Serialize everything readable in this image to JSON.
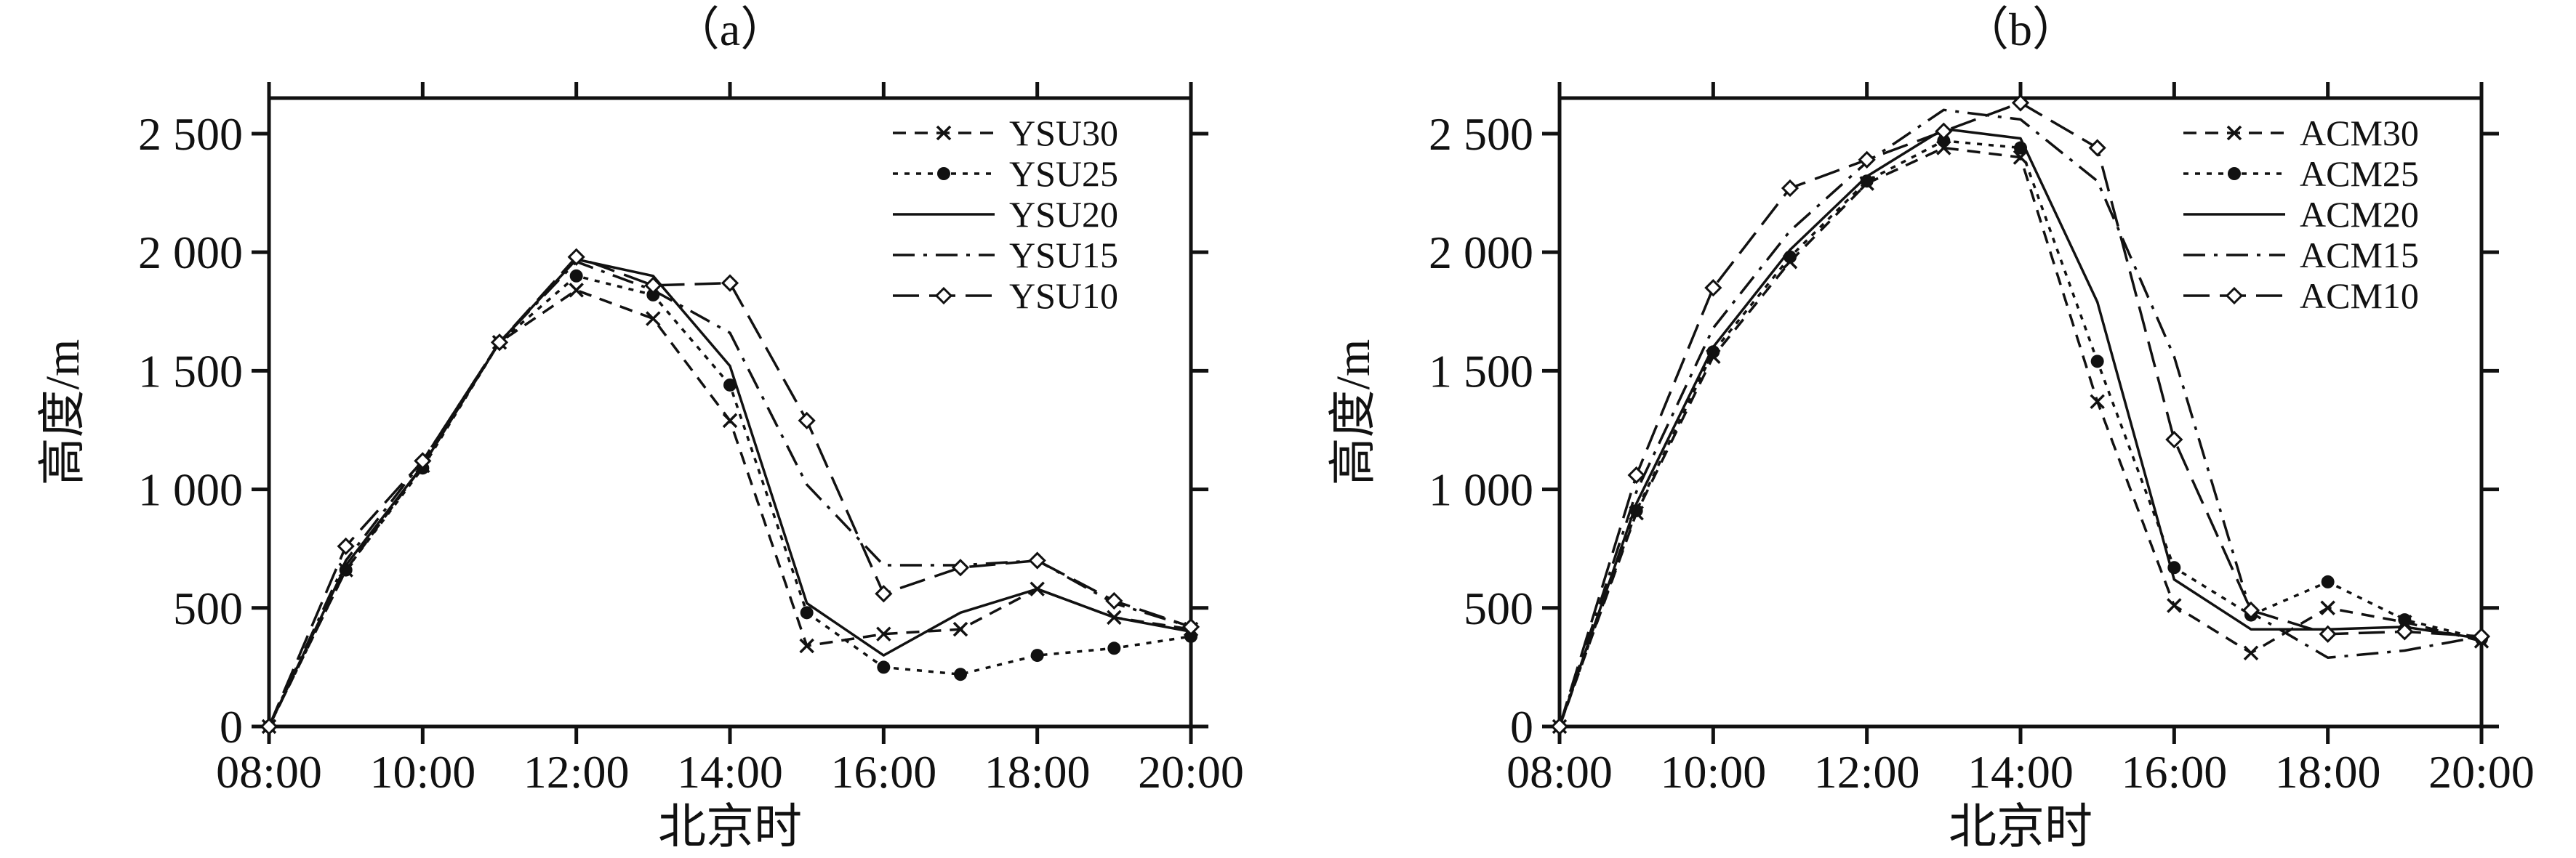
{
  "chart_data": [
    {
      "type": "line",
      "panel_label": "（a）",
      "xlabel": "北京时",
      "ylabel": "高度/m",
      "x_ticks": [
        "08:00",
        "10:00",
        "12:00",
        "14:00",
        "16:00",
        "18:00",
        "20:00"
      ],
      "x_tick_hours": [
        8,
        10,
        12,
        14,
        16,
        18,
        20
      ],
      "y_ticks": [
        0,
        500,
        1000,
        1500,
        2000,
        2500
      ],
      "y_tick_labels": [
        "0",
        "500",
        "1 000",
        "1 500",
        "2 000",
        "2 500"
      ],
      "xlim": [
        8,
        20
      ],
      "ylim": [
        0,
        2650
      ],
      "legend_position": "top-right",
      "x": [
        8,
        9,
        10,
        11,
        12,
        13,
        14,
        15,
        16,
        17,
        18,
        19,
        20
      ],
      "series": [
        {
          "name": "YSU30",
          "style": "dash-x",
          "values": [
            0,
            660,
            1100,
            1620,
            1840,
            1720,
            1290,
            340,
            390,
            410,
            580,
            460,
            410
          ]
        },
        {
          "name": "YSU25",
          "style": "dot-circle",
          "values": [
            0,
            660,
            1090,
            1620,
            1900,
            1820,
            1440,
            480,
            250,
            220,
            300,
            330,
            380
          ]
        },
        {
          "name": "YSU20",
          "style": "solid",
          "values": [
            0,
            680,
            1100,
            1620,
            1970,
            1900,
            1520,
            520,
            300,
            480,
            580,
            460,
            400
          ]
        },
        {
          "name": "YSU15",
          "style": "dash-dot",
          "values": [
            0,
            700,
            1120,
            1620,
            1960,
            1840,
            1660,
            1020,
            680,
            680,
            700,
            520,
            420
          ]
        },
        {
          "name": "YSU10",
          "style": "long-dash-diamond",
          "values": [
            0,
            760,
            1120,
            1620,
            1980,
            1860,
            1870,
            1290,
            560,
            670,
            700,
            530,
            420
          ]
        }
      ]
    },
    {
      "type": "line",
      "panel_label": "（b）",
      "xlabel": "北京时",
      "ylabel": "高度/m",
      "x_ticks": [
        "08:00",
        "10:00",
        "12:00",
        "14:00",
        "16:00",
        "18:00",
        "20:00"
      ],
      "x_tick_hours": [
        8,
        10,
        12,
        14,
        16,
        18,
        20
      ],
      "y_ticks": [
        0,
        500,
        1000,
        1500,
        2000,
        2500
      ],
      "y_tick_labels": [
        "0",
        "500",
        "1 000",
        "1 500",
        "2 000",
        "2 500"
      ],
      "xlim": [
        8,
        20
      ],
      "ylim": [
        0,
        2650
      ],
      "legend_position": "top-right",
      "x": [
        8,
        9,
        10,
        11,
        12,
        13,
        14,
        15,
        16,
        17,
        18,
        19,
        20
      ],
      "series": [
        {
          "name": "ACM30",
          "style": "dash-x",
          "values": [
            0,
            900,
            1560,
            1960,
            2290,
            2440,
            2400,
            1370,
            510,
            310,
            500,
            440,
            360
          ]
        },
        {
          "name": "ACM25",
          "style": "dot-circle",
          "values": [
            0,
            910,
            1580,
            1980,
            2300,
            2470,
            2440,
            1540,
            670,
            470,
            610,
            450,
            370
          ]
        },
        {
          "name": "ACM20",
          "style": "solid",
          "values": [
            0,
            940,
            1600,
            2010,
            2320,
            2520,
            2480,
            1790,
            620,
            410,
            410,
            420,
            370
          ]
        },
        {
          "name": "ACM15",
          "style": "dash-dot",
          "values": [
            0,
            990,
            1680,
            2090,
            2380,
            2600,
            2560,
            2300,
            1560,
            480,
            290,
            320,
            380
          ]
        },
        {
          "name": "ACM10",
          "style": "long-dash-diamond",
          "values": [
            0,
            1060,
            1850,
            2270,
            2390,
            2510,
            2630,
            2440,
            1210,
            490,
            390,
            400,
            380
          ]
        }
      ]
    }
  ]
}
